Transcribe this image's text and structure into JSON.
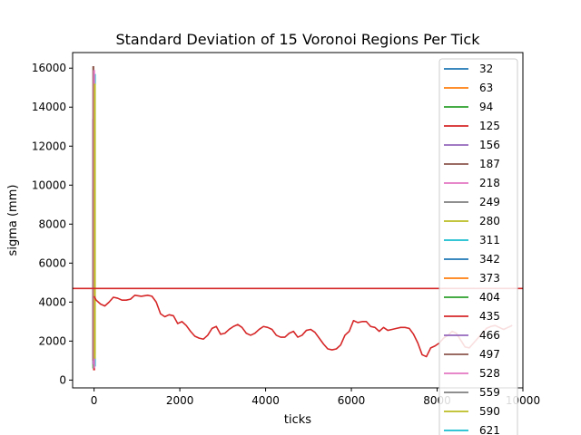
{
  "chart_data": {
    "type": "line",
    "title": "Standard Deviation of 15 Voronoi Regions Per Tick",
    "xlabel": "ticks",
    "ylabel": "sigma (mm)",
    "xlim": [
      -500,
      10000
    ],
    "ylim": [
      -400,
      16800
    ],
    "xticks": [
      0,
      2000,
      4000,
      6000,
      8000,
      10000
    ],
    "yticks": [
      0,
      2000,
      4000,
      6000,
      8000,
      10000,
      12000,
      14000,
      16000
    ],
    "xtick_labels": [
      "0",
      "2000",
      "4000",
      "6000",
      "8000",
      "10000"
    ],
    "ytick_labels": [
      "0",
      "2000",
      "4000",
      "6000",
      "8000",
      "10000",
      "12000",
      "14000",
      "16000"
    ],
    "grid": false,
    "legend_position": "upper-right",
    "legend": [
      {
        "label": "32",
        "color": "#1f77b4"
      },
      {
        "label": "63",
        "color": "#ff7f0e"
      },
      {
        "label": "94",
        "color": "#2ca02c"
      },
      {
        "label": "125",
        "color": "#d62728"
      },
      {
        "label": "156",
        "color": "#9467bd"
      },
      {
        "label": "187",
        "color": "#8c564b"
      },
      {
        "label": "218",
        "color": "#e377c2"
      },
      {
        "label": "249",
        "color": "#7f7f7f"
      },
      {
        "label": "280",
        "color": "#bcbd22"
      },
      {
        "label": "311",
        "color": "#17becf"
      },
      {
        "label": "342",
        "color": "#1f77b4"
      },
      {
        "label": "373",
        "color": "#ff7f0e"
      },
      {
        "label": "404",
        "color": "#2ca02c"
      },
      {
        "label": "435",
        "color": "#d62728"
      },
      {
        "label": "466",
        "color": "#9467bd"
      },
      {
        "label": "497",
        "color": "#8c564b"
      },
      {
        "label": "528",
        "color": "#e377c2"
      },
      {
        "label": "559",
        "color": "#7f7f7f"
      },
      {
        "label": "590",
        "color": "#bcbd22"
      },
      {
        "label": "621",
        "color": "#17becf"
      }
    ],
    "vertical_spikes": [
      {
        "color": "#2ca02c",
        "x": 0,
        "y_range": [
          600,
          9800
        ]
      },
      {
        "color": "#1f77b4",
        "x": 0,
        "y_range": [
          900,
          11600
        ]
      },
      {
        "color": "#ff7f0e",
        "x": 0,
        "y_range": [
          1300,
          12800
        ]
      },
      {
        "color": "#9467bd",
        "x": 0,
        "y_range": [
          800,
          13400
        ]
      },
      {
        "color": "#d62728",
        "x": 0,
        "y_range": [
          500,
          14200
        ]
      },
      {
        "color": "#17becf",
        "x": 0,
        "y_range": [
          700,
          15700
        ]
      },
      {
        "color": "#8c564b",
        "x": 0,
        "y_range": [
          1000,
          16100
        ]
      },
      {
        "color": "#e377c2",
        "x": 0,
        "y_range": [
          600,
          15900
        ]
      },
      {
        "color": "#bcbd22",
        "x": 0,
        "y_range": [
          1100,
          15200
        ]
      }
    ],
    "horizontal_line": {
      "y": 4700,
      "color": "#d62728"
    },
    "series": [
      {
        "color": "#d62728",
        "x": [
          0,
          50,
          150,
          250,
          350,
          450,
          550,
          650,
          750,
          850,
          950,
          1100,
          1250,
          1350,
          1450,
          1550,
          1650,
          1750,
          1850,
          1950,
          2050,
          2150,
          2250,
          2350,
          2450,
          2550,
          2650,
          2750,
          2850,
          2950,
          3050,
          3150,
          3250,
          3350,
          3450,
          3550,
          3650,
          3750,
          3850,
          3950,
          4050,
          4150,
          4250,
          4350,
          4450,
          4550,
          4650,
          4750,
          4850,
          4950,
          5050,
          5150,
          5250,
          5350,
          5450,
          5550,
          5650,
          5750,
          5850,
          5950,
          6050,
          6150,
          6250,
          6350,
          6450,
          6550,
          6650,
          6750,
          6850,
          6950,
          7050,
          7150,
          7250,
          7350,
          7450,
          7550,
          7650,
          7750,
          7850,
          7950,
          8050,
          8150,
          8250,
          8350,
          8450,
          8550,
          8650,
          8750,
          8850,
          8950,
          9050,
          9150,
          9250,
          9350,
          9450,
          9550,
          9650,
          9750
        ],
        "y": [
          4300,
          4100,
          3900,
          3800,
          4000,
          4250,
          4200,
          4100,
          4100,
          4150,
          4350,
          4300,
          4350,
          4300,
          4000,
          3400,
          3250,
          3350,
          3300,
          2900,
          3000,
          2800,
          2500,
          2250,
          2150,
          2100,
          2300,
          2650,
          2750,
          2350,
          2400,
          2600,
          2750,
          2850,
          2700,
          2400,
          2300,
          2400,
          2600,
          2750,
          2700,
          2600,
          2300,
          2200,
          2200,
          2400,
          2500,
          2200,
          2300,
          2550,
          2600,
          2450,
          2150,
          1850,
          1600,
          1550,
          1600,
          1800,
          2300,
          2500,
          3050,
          2950,
          3000,
          3000,
          2750,
          2700,
          2500,
          2700,
          2550,
          2600,
          2650,
          2700,
          2700,
          2650,
          2350,
          1900,
          1300,
          1200,
          1650,
          1750,
          1900,
          2150,
          2300,
          2500,
          2400,
          2050,
          1700,
          1650,
          1900,
          2150,
          2400,
          2650,
          2750,
          2800,
          2700,
          2600,
          2700,
          2800
        ]
      }
    ]
  }
}
